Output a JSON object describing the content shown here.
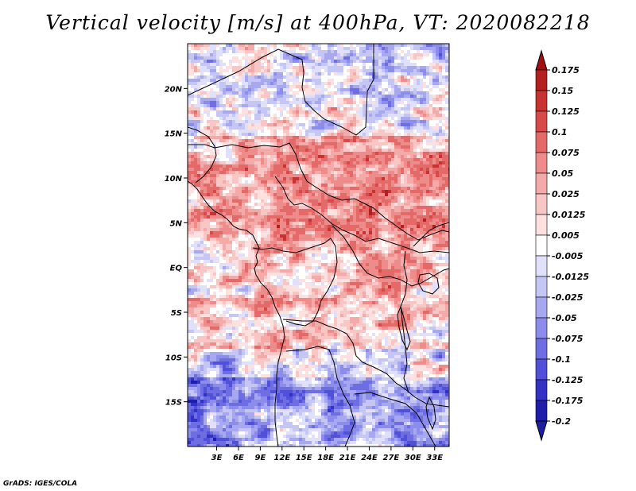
{
  "title": "Vertical velocity [m/s] at 400hPa, VT: 2020082218",
  "footer": "GrADS: IGES/COLA",
  "map": {
    "lat_range": [
      -20,
      25
    ],
    "lon_range": [
      -1,
      35
    ],
    "lat_ticks": [
      {
        "value": 20,
        "label": "20N"
      },
      {
        "value": 15,
        "label": "15N"
      },
      {
        "value": 10,
        "label": "10N"
      },
      {
        "value": 5,
        "label": "5N"
      },
      {
        "value": 0,
        "label": "EQ"
      },
      {
        "value": -5,
        "label": "5S"
      },
      {
        "value": -10,
        "label": "10S"
      },
      {
        "value": -15,
        "label": "15S"
      }
    ],
    "lon_ticks": [
      {
        "value": 3,
        "label": "3E"
      },
      {
        "value": 6,
        "label": "6E"
      },
      {
        "value": 9,
        "label": "9E"
      },
      {
        "value": 12,
        "label": "12E"
      },
      {
        "value": 15,
        "label": "15E"
      },
      {
        "value": 18,
        "label": "18E"
      },
      {
        "value": 21,
        "label": "21E"
      },
      {
        "value": 24,
        "label": "24E"
      },
      {
        "value": 27,
        "label": "27E"
      },
      {
        "value": 30,
        "label": "30E"
      },
      {
        "value": 33,
        "label": "33E"
      }
    ]
  },
  "colorbar": {
    "levels": [
      {
        "label": "0.175",
        "color": "#a01010"
      },
      {
        "label": "0.15",
        "color": "#b41f1f"
      },
      {
        "label": "0.125",
        "color": "#c83232"
      },
      {
        "label": "0.1",
        "color": "#d84a4a"
      },
      {
        "label": "0.075",
        "color": "#e46a6a"
      },
      {
        "label": "0.05",
        "color": "#ee8c8c"
      },
      {
        "label": "0.025",
        "color": "#f5aaaa"
      },
      {
        "label": "0.0125",
        "color": "#f9c6c6"
      },
      {
        "label": "0.005",
        "color": "#fde0e0"
      },
      {
        "label": "-0.005",
        "color": "#ffffff"
      },
      {
        "label": "-0.0125",
        "color": "#e0e0fa"
      },
      {
        "label": "-0.025",
        "color": "#c6c6f5"
      },
      {
        "label": "-0.05",
        "color": "#a8a8f0"
      },
      {
        "label": "-0.075",
        "color": "#8c8cea"
      },
      {
        "label": "-0.1",
        "color": "#6e6ee2"
      },
      {
        "label": "-0.125",
        "color": "#5050d8"
      },
      {
        "label": "-0.175",
        "color": "#3232c4"
      },
      {
        "label": "-0.2",
        "color": "#1e1eaa"
      }
    ],
    "top_color": "#a01010",
    "bottom_color": "#1e1ea0"
  }
}
